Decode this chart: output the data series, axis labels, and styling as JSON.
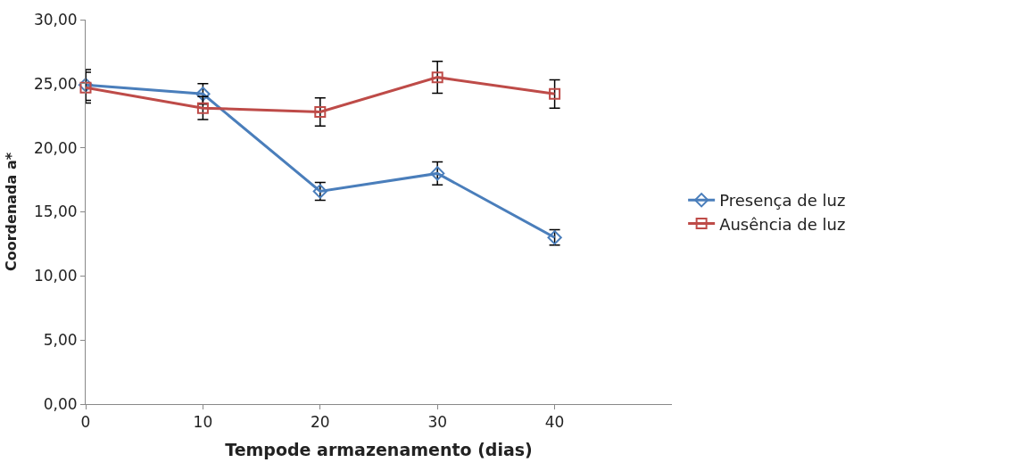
{
  "chart_data": {
    "type": "line",
    "xlabel": "Tempode armazenamento (dias)",
    "ylabel": "Coordenada a*",
    "x": [
      0,
      10,
      20,
      30,
      40
    ],
    "series": [
      {
        "name": "Presença de luz",
        "color": "#4a7ebb",
        "marker": "diamond",
        "values": [
          24.9,
          24.2,
          16.6,
          18.0,
          13.0
        ],
        "errors": [
          1.2,
          0.8,
          0.7,
          0.9,
          0.6
        ]
      },
      {
        "name": "Ausência de luz",
        "color": "#be4b48",
        "marker": "square",
        "values": [
          24.7,
          23.1,
          22.8,
          25.5,
          24.2
        ],
        "errors": [
          1.2,
          0.9,
          1.1,
          1.25,
          1.1
        ]
      }
    ],
    "xlim": [
      0,
      50
    ],
    "xticks": [
      0,
      10,
      20,
      30,
      40
    ],
    "ylim": [
      0,
      30
    ],
    "yticks": [
      {
        "value": 0,
        "label": "0,00"
      },
      {
        "value": 5,
        "label": "5,00"
      },
      {
        "value": 10,
        "label": "10,00"
      },
      {
        "value": 15,
        "label": "15,00"
      },
      {
        "value": 20,
        "label": "20,00"
      },
      {
        "value": 25,
        "label": "25,00"
      },
      {
        "value": 30,
        "label": "30,00"
      }
    ],
    "legend": "right",
    "line_style": "solid"
  }
}
